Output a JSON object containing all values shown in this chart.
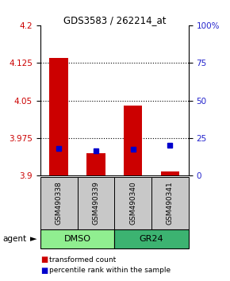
{
  "title": "GDS3583 / 262214_at",
  "samples": [
    "GSM490338",
    "GSM490339",
    "GSM490340",
    "GSM490341"
  ],
  "dmso_label": "DMSO",
  "gr24_label": "GR24",
  "dmso_color": "#90EE90",
  "gr24_color": "#3CB371",
  "bar_bottom": 3.9,
  "bar_tops": [
    4.135,
    3.945,
    4.04,
    3.908
  ],
  "blue_values": [
    3.955,
    3.95,
    3.952,
    3.96
  ],
  "ylim": [
    3.9,
    4.2
  ],
  "yticks_left": [
    3.9,
    3.975,
    4.05,
    4.125,
    4.2
  ],
  "yticks_right_labels": [
    "0",
    "25",
    "50",
    "75",
    "100%"
  ],
  "yticks_right_pct": [
    0,
    25,
    50,
    75,
    100
  ],
  "bar_color": "#CC0000",
  "blue_color": "#0000CC",
  "label_color_left": "#CC0000",
  "label_color_right": "#2222CC",
  "agent_label": "agent",
  "legend_red": "transformed count",
  "legend_blue": "percentile rank within the sample",
  "bar_width": 0.5,
  "sample_box_color": "#C8C8C8",
  "fig_width": 2.9,
  "fig_height": 3.54
}
